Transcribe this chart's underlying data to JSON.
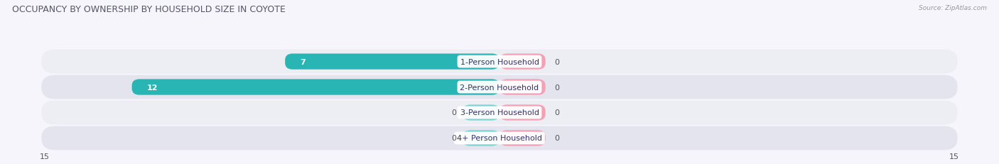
{
  "title": "OCCUPANCY BY OWNERSHIP BY HOUSEHOLD SIZE IN COYOTE",
  "source": "Source: ZipAtlas.com",
  "categories": [
    "1-Person Household",
    "2-Person Household",
    "3-Person Household",
    "4+ Person Household"
  ],
  "owner_values": [
    7,
    12,
    0,
    0
  ],
  "renter_values": [
    0,
    0,
    0,
    0
  ],
  "owner_color": "#2ab5b5",
  "owner_color_light": "#7dd4d4",
  "renter_color": "#f4a0b5",
  "row_bg_colors": [
    "#ededf4",
    "#e4e4ef"
  ],
  "x_max": 15,
  "x_min": -15,
  "label_fontsize": 8,
  "title_fontsize": 9,
  "legend_fontsize": 8,
  "axis_tick_fontsize": 8,
  "category_label_fontsize": 8,
  "bar_height": 0.62,
  "renter_stub": 1.5,
  "owner_stub": 1.2
}
